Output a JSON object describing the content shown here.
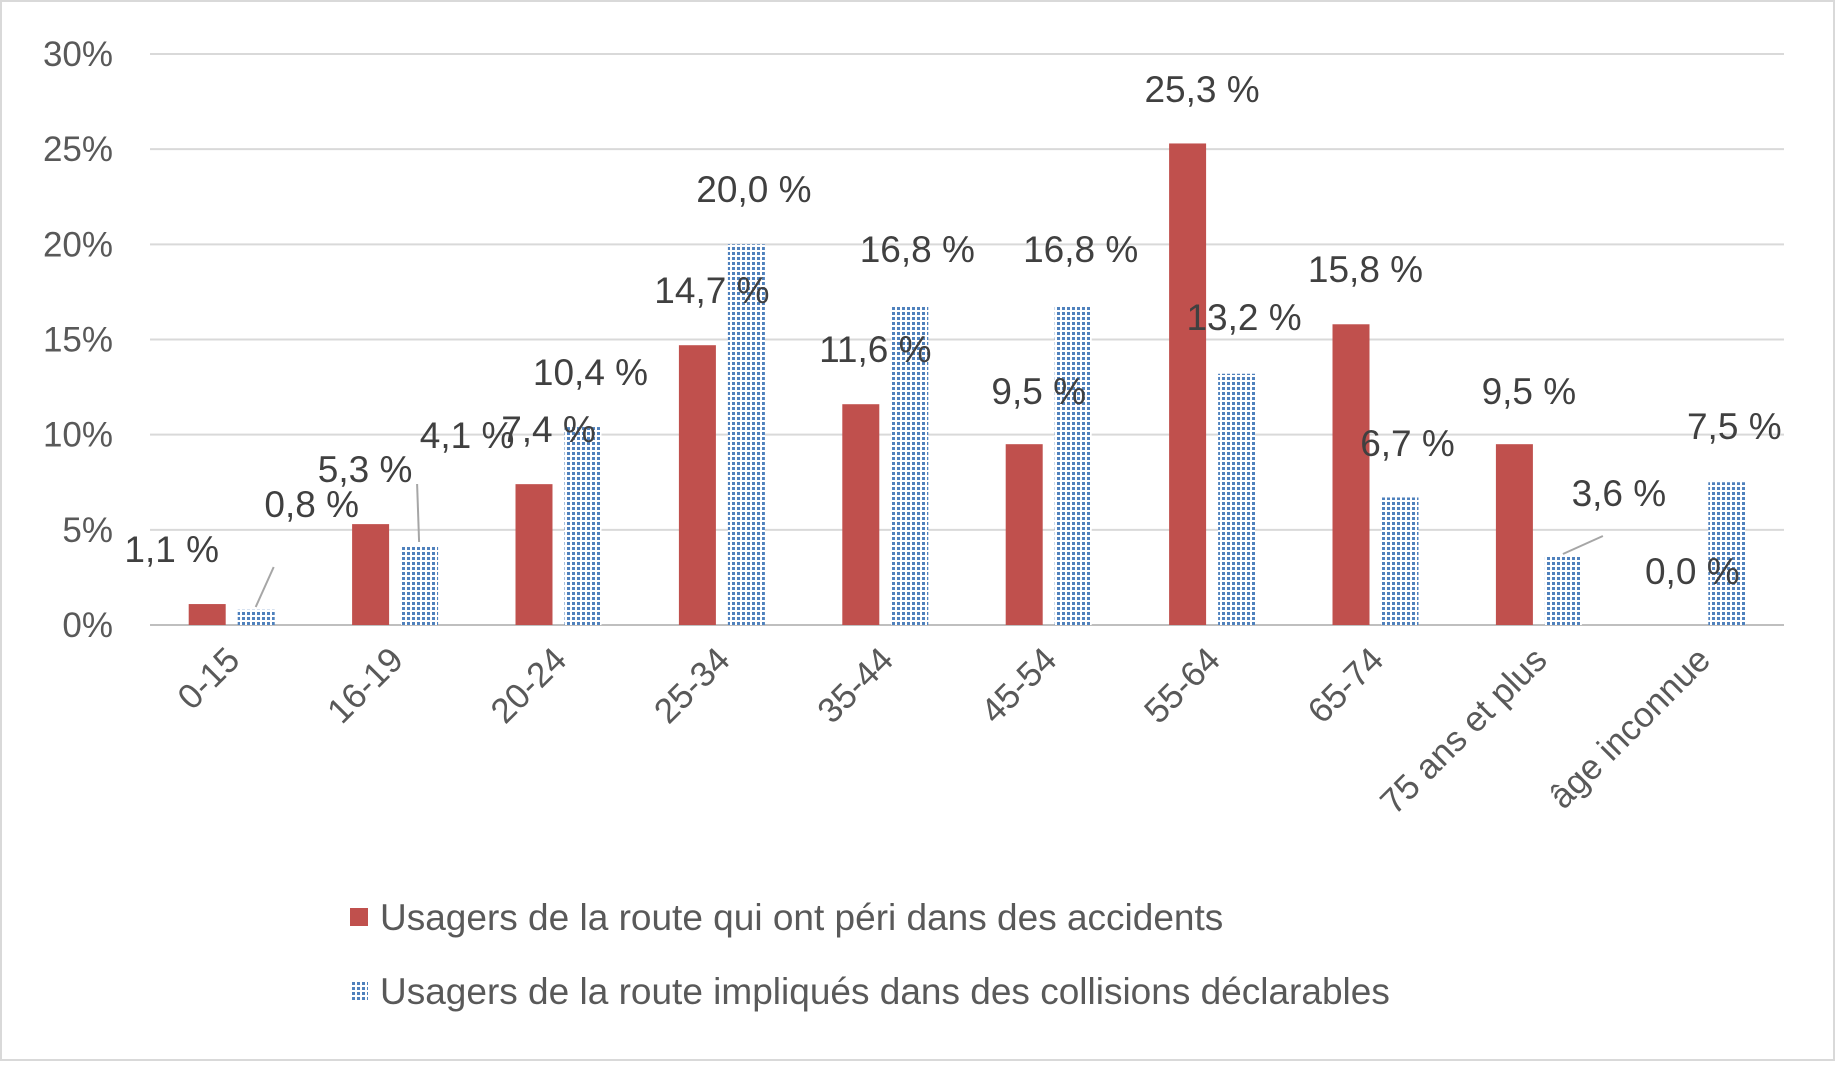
{
  "chart_data": {
    "type": "bar",
    "categories": [
      "0-15",
      "16-19",
      "20-24",
      "25-34",
      "35-44",
      "45-54",
      "55-64",
      "65-74",
      "75 ans et plus",
      "âge inconnue"
    ],
    "series": [
      {
        "name": "Usagers de la route qui ont péri dans des accidents",
        "values": [
          1.1,
          5.3,
          7.4,
          14.7,
          11.6,
          9.5,
          25.3,
          15.8,
          9.5,
          0.0
        ],
        "labels": [
          "1,1 %",
          "5,3 %",
          "7,4 %",
          "14,7 %",
          "11,6 %",
          "9,5 %",
          "25,3 %",
          "15,8 %",
          "9,5 %",
          "0,0 %"
        ],
        "color": "#c0504d",
        "pattern": "solid"
      },
      {
        "name": "Usagers de la route impliqués dans des collisions déclarables",
        "values": [
          0.8,
          4.1,
          10.4,
          20.0,
          16.8,
          16.8,
          13.2,
          6.7,
          3.6,
          7.5
        ],
        "labels": [
          "0,8 %",
          "4,1 %",
          "10,4 %",
          "20,0 %",
          "16,8 %",
          "16,8 %",
          "13,2 %",
          "6,7 %",
          "3,6 %",
          "7,5 %"
        ],
        "color": "#4f81bd",
        "pattern": "dotted"
      }
    ],
    "ylim": [
      0,
      30
    ],
    "yticks": [
      "0%",
      "5%",
      "10%",
      "15%",
      "20%",
      "25%",
      "30%"
    ],
    "grid": true,
    "legend_position": "bottom"
  }
}
